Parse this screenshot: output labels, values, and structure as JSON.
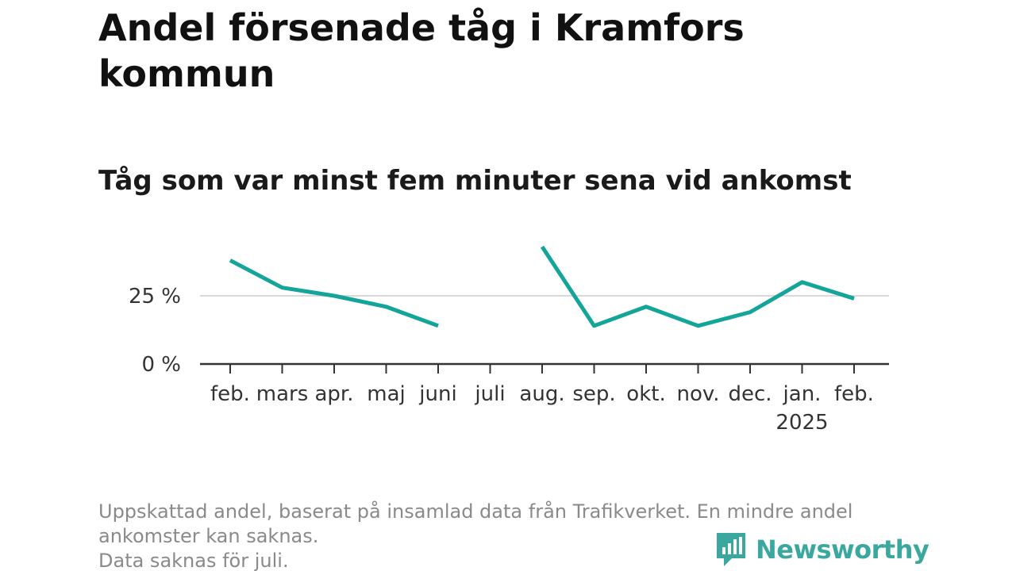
{
  "title": "Andel försenade tåg i Kramfors kommun",
  "subtitle": "Tåg som var minst fem minuter sena vid ankomst",
  "notes": [
    "Uppskattad andel, baserat på insamlad data från Trafikverket. En mindre andel ankomster kan saknas.",
    "Data saknas för juli."
  ],
  "logo": {
    "text": "Newsworthy",
    "icon": "newsworthy-logo-icon"
  },
  "colors": {
    "line": "#13a59a",
    "axis": "#333333",
    "grid": "#d9d9d9",
    "note": "#8a8a8a",
    "logo": "#3aa89f"
  },
  "chart_data": {
    "type": "line",
    "categories": [
      "feb.",
      "mars",
      "apr.",
      "maj",
      "juni",
      "juli",
      "aug.",
      "sep.",
      "okt.",
      "nov.",
      "dec.",
      "jan.",
      "feb."
    ],
    "year_labels": [
      {
        "index": 11,
        "label": "2025"
      }
    ],
    "series": [
      {
        "values": [
          38,
          28,
          25,
          21,
          14,
          null,
          43,
          14,
          21,
          14,
          19,
          30,
          24
        ]
      }
    ],
    "y_ticks": [
      {
        "value": 0,
        "label": "0 %"
      },
      {
        "value": 25,
        "label": "25 %"
      }
    ],
    "ylim": [
      0,
      50
    ],
    "grid": true,
    "xlabel": "",
    "ylabel": ""
  }
}
